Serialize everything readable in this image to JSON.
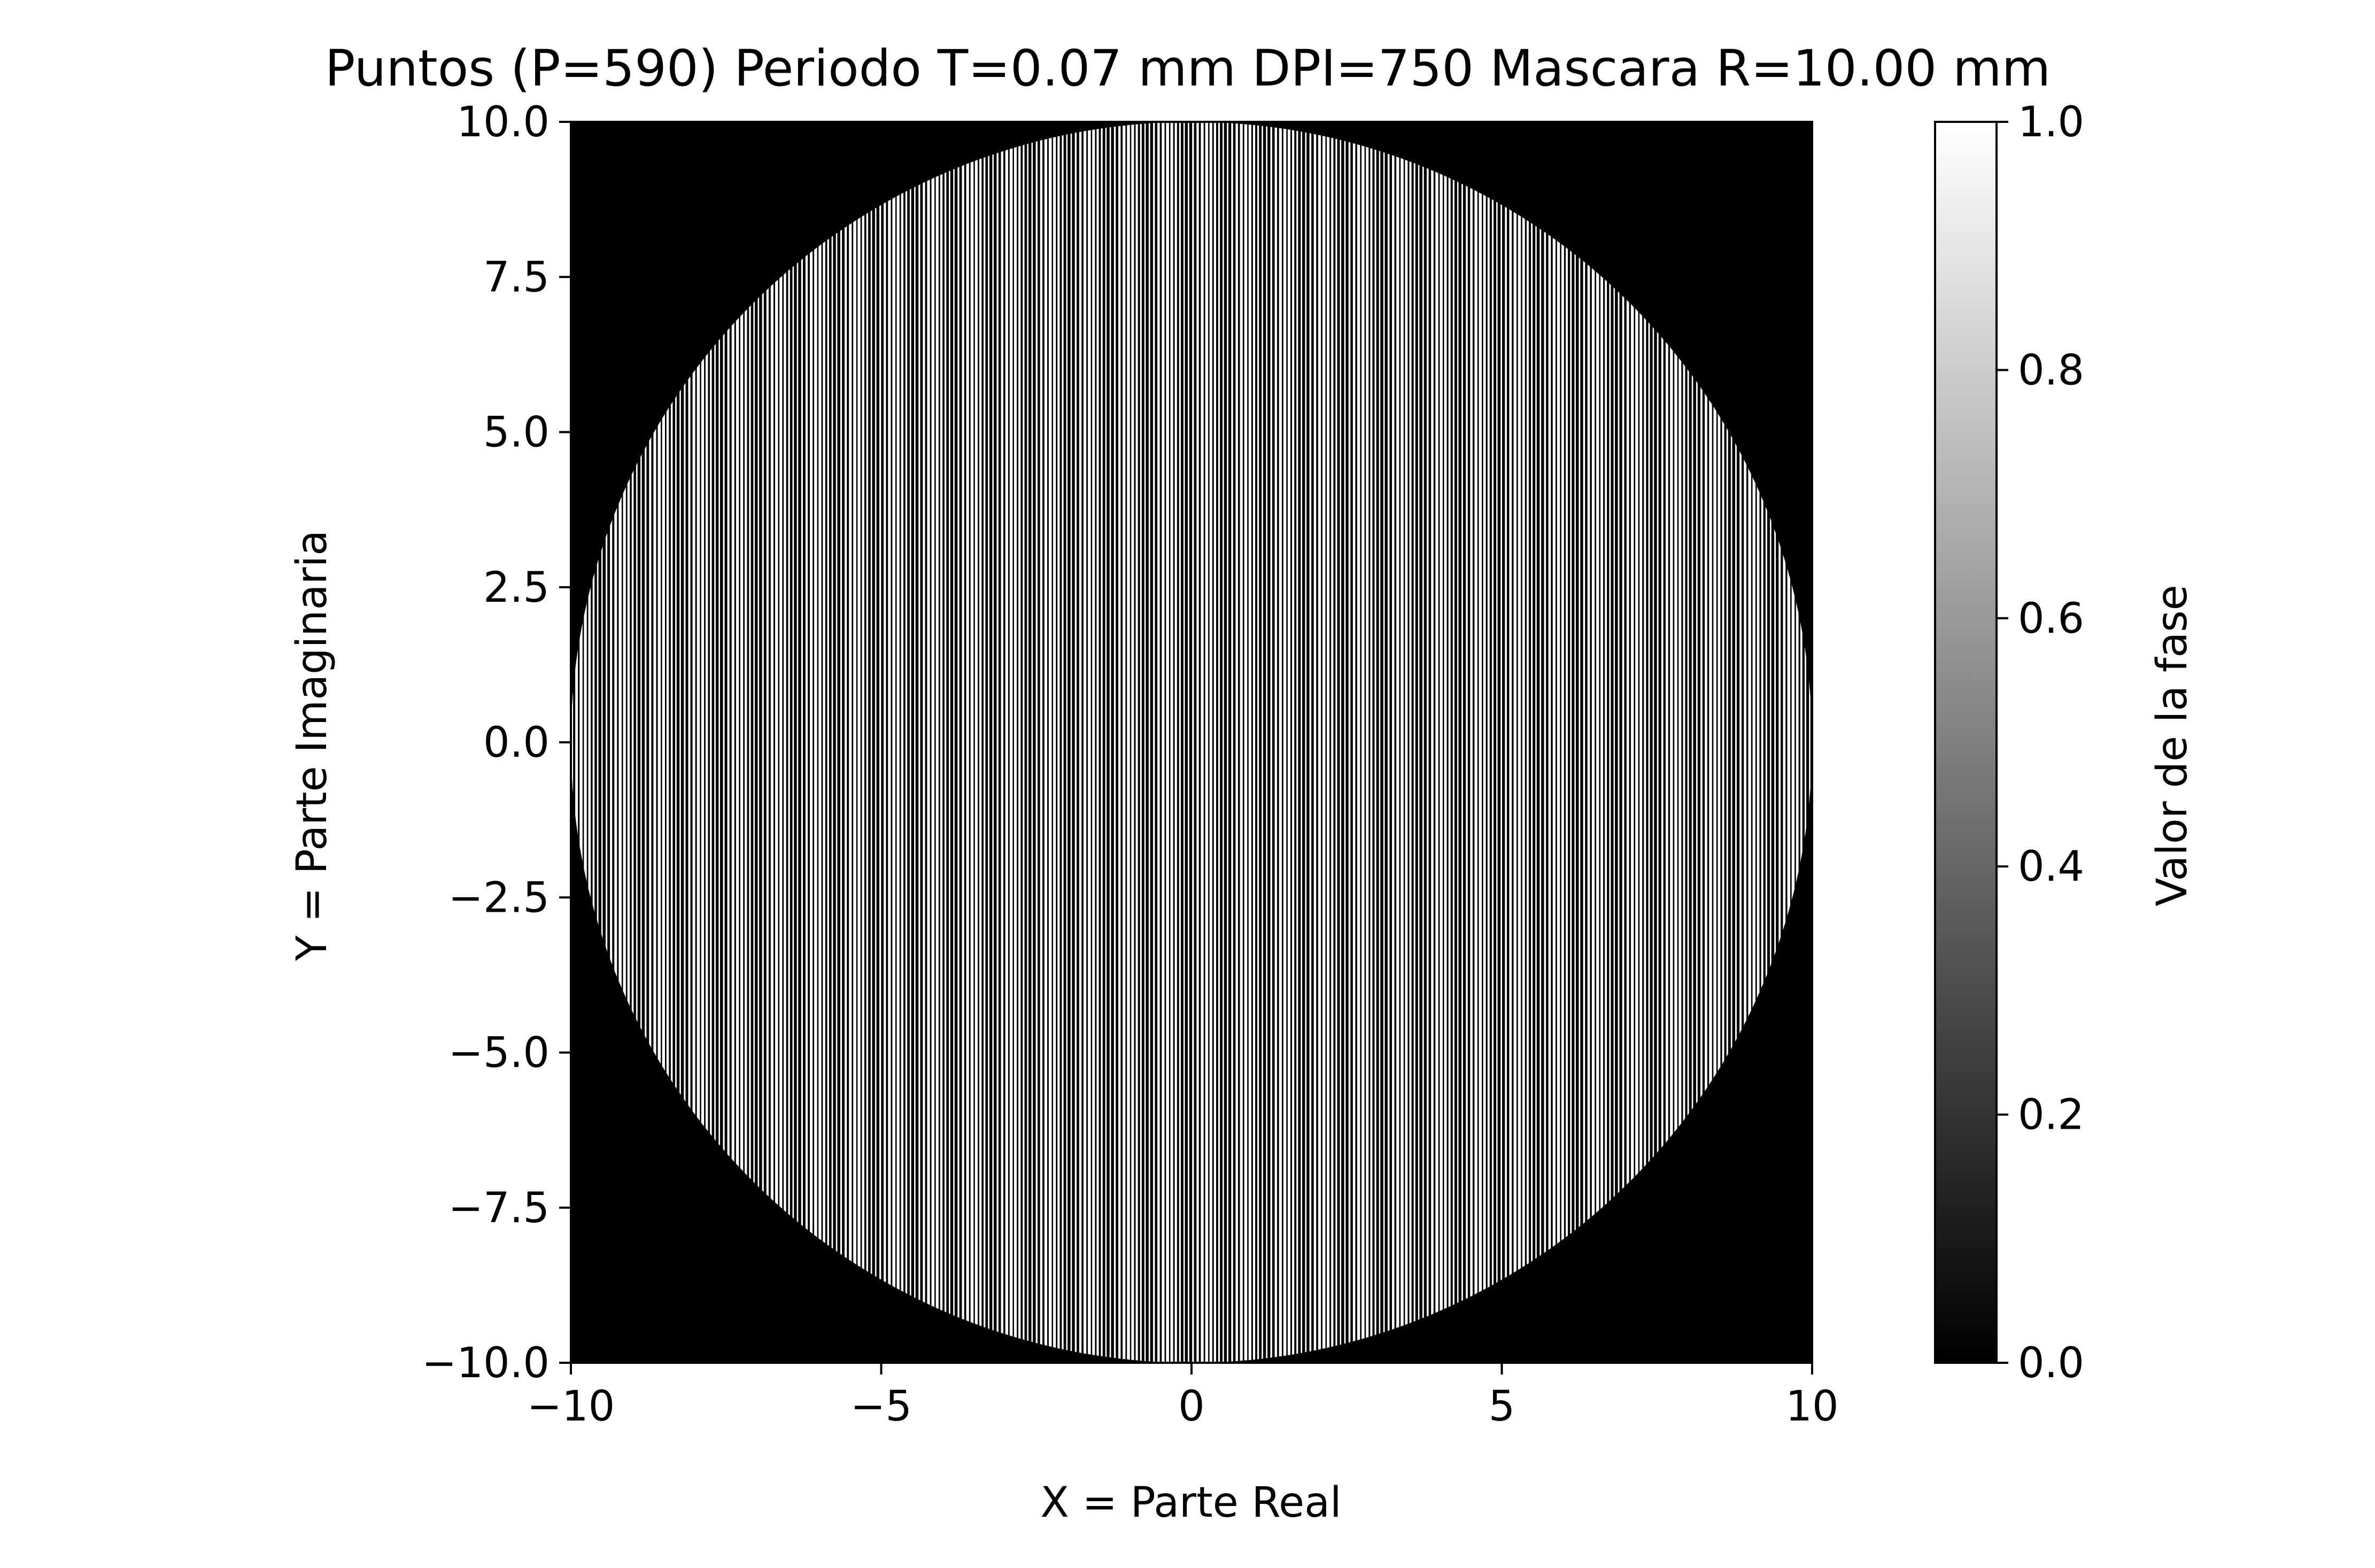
{
  "chart_data": {
    "type": "heatmap",
    "title": "Puntos (P=590) Periodo T=0.07 mm DPI=750 Mascara R=10.00 mm",
    "xlabel": "X = Parte Real",
    "ylabel": "Y = Parte Imaginaria",
    "xlim": [
      -10,
      10
    ],
    "ylim": [
      -10,
      10
    ],
    "x_ticks": [
      -10,
      -5,
      0,
      5,
      10
    ],
    "x_tick_labels": [
      "−10",
      "−5",
      "0",
      "5",
      "10"
    ],
    "y_ticks": [
      10.0,
      7.5,
      5.0,
      2.5,
      0.0,
      -2.5,
      -5.0,
      -7.5,
      -10.0
    ],
    "y_tick_labels": [
      "10.0",
      "7.5",
      "5.0",
      "2.5",
      "0.0",
      "−2.5",
      "−5.0",
      "−7.5",
      "−10.0"
    ],
    "grid": false,
    "colormap": "gray",
    "background_value": 0.0,
    "mask": {
      "shape": "circle",
      "center": [
        0,
        0
      ],
      "radius": 10.0
    },
    "pattern": {
      "description_kind": "vertical binary phase fringes inside circular mask",
      "period": 0.07,
      "values": [
        0.0,
        1.0
      ]
    },
    "colorbar": {
      "label": "Valor de la fase",
      "range": [
        0.0,
        1.0
      ],
      "ticks": [
        0.0,
        0.2,
        0.4,
        0.6,
        0.8,
        1.0
      ],
      "tick_labels": [
        "0.0",
        "0.2",
        "0.4",
        "0.6",
        "0.8",
        "1.0"
      ]
    }
  },
  "colors": {
    "background": "#ffffff",
    "mask_background": "#000000",
    "fringe_light": "#ffffff",
    "axis": "#000000"
  }
}
